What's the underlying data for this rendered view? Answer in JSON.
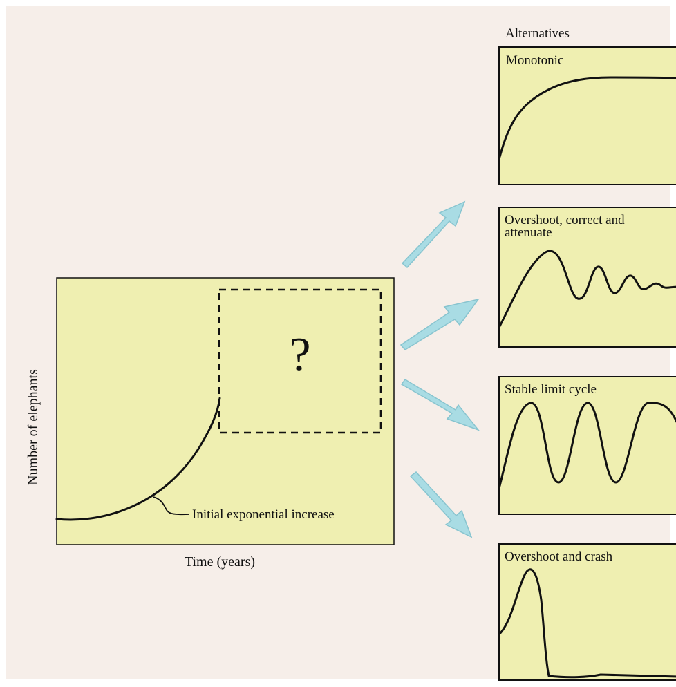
{
  "diagram": {
    "question_mark": "?",
    "main_curve_label": "Initial exponential increase",
    "x_axis_label": "Time (years)",
    "y_axis_label": "Number of elephants",
    "alternatives_heading": "Alternatives",
    "alternatives": [
      {
        "title": "Monotonic"
      },
      {
        "title_line1": "Overshoot, correct and",
        "title_line2": "attenuate"
      },
      {
        "title": "Stable limit cycle"
      },
      {
        "title": "Overshoot and crash"
      }
    ],
    "colors": {
      "background": "#f6eee9",
      "panel_fill": "#efefb1",
      "arrow_fill": "#a9dce4",
      "line": "#111111"
    }
  }
}
